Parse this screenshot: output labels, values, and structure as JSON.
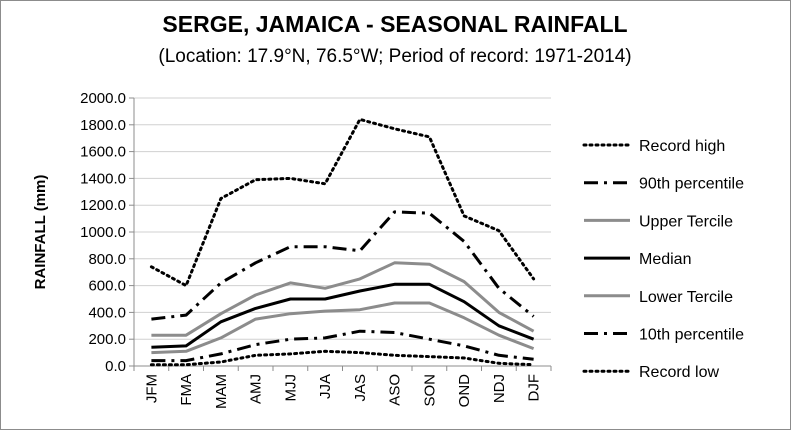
{
  "chart_data": {
    "type": "line",
    "title": "SERGE, JAMAICA - SEASONAL RAINFALL",
    "subtitle": "(Location: 17.9°N, 76.5°W; Period of record: 1971-2014)",
    "xlabel": "",
    "ylabel": "RAINFALL (mm)",
    "ylim": [
      0,
      2000
    ],
    "yticks": [
      "0.0",
      "200.0",
      "400.0",
      "600.0",
      "800.0",
      "1000.0",
      "1200.0",
      "1400.0",
      "1600.0",
      "1800.0",
      "2000.0"
    ],
    "categories": [
      "JFM",
      "FMA",
      "MAM",
      "AMJ",
      "MJJ",
      "JJA",
      "JAS",
      "ASO",
      "SON",
      "OND",
      "NDJ",
      "DJF"
    ],
    "legend_position": "right",
    "grid": true,
    "series": [
      {
        "name": "Record high",
        "color": "#000000",
        "style": "dotted",
        "values": [
          740,
          600,
          1250,
          1390,
          1400,
          1360,
          1840,
          1770,
          1710,
          1120,
          1010,
          650
        ]
      },
      {
        "name": "90th percentile",
        "color": "#000000",
        "style": "dash-dot",
        "values": [
          350,
          380,
          620,
          770,
          890,
          890,
          860,
          1150,
          1140,
          930,
          580,
          370
        ]
      },
      {
        "name": "Upper Tercile",
        "color": "#8c8c8c",
        "style": "solid",
        "values": [
          230,
          230,
          390,
          530,
          620,
          580,
          650,
          770,
          760,
          630,
          400,
          260
        ]
      },
      {
        "name": "Median",
        "color": "#000000",
        "style": "solid",
        "values": [
          140,
          150,
          330,
          430,
          500,
          500,
          560,
          610,
          610,
          480,
          300,
          200
        ]
      },
      {
        "name": "Lower Tercile",
        "color": "#8c8c8c",
        "style": "solid",
        "values": [
          100,
          110,
          210,
          350,
          390,
          410,
          420,
          470,
          470,
          360,
          230,
          130
        ]
      },
      {
        "name": "10th percentile",
        "color": "#000000",
        "style": "dash-dot",
        "values": [
          40,
          40,
          90,
          160,
          200,
          210,
          260,
          250,
          200,
          150,
          80,
          50
        ]
      },
      {
        "name": "Record low",
        "color": "#000000",
        "style": "dotted",
        "values": [
          10,
          10,
          30,
          80,
          90,
          110,
          100,
          80,
          70,
          60,
          20,
          10
        ]
      }
    ]
  }
}
